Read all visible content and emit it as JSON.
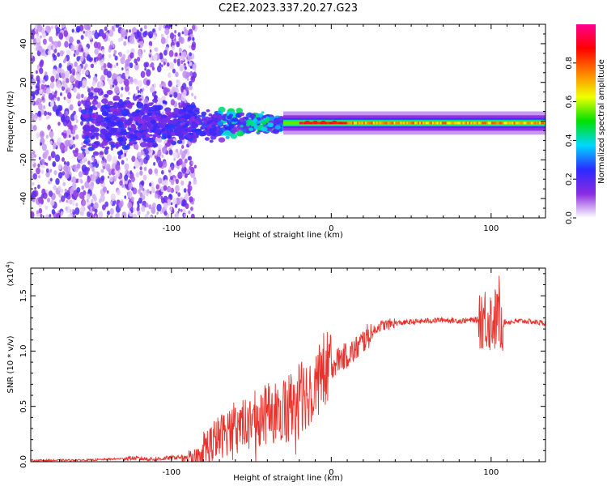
{
  "figure": {
    "title": "C2E2.2023.337.20.27.G23"
  },
  "chart_data": [
    {
      "type": "heatmap",
      "xlabel": "Height of straight line (km)",
      "ylabel": "Frequency (Hz)",
      "xlim": [
        -188,
        134
      ],
      "ylim": [
        -50,
        50
      ],
      "xticks": [
        -100,
        0,
        100
      ],
      "yticks": [
        -40,
        -20,
        0,
        20,
        40
      ],
      "colorbar": {
        "label": "Normalized spectral amplitude",
        "range": [
          0,
          1
        ],
        "ticks": [
          0.0,
          0.2,
          0.4,
          0.6,
          0.8
        ],
        "tick_labels": [
          "0.0",
          "0.2",
          "0.4",
          "0.6",
          "0.8"
        ],
        "colormap": [
          "#ffffff",
          "#8a2be2",
          "#2a2aff",
          "#00d8ff",
          "#00e000",
          "#f0ff00",
          "#ff8000",
          "#ff0000",
          "#ff0090"
        ]
      },
      "features": {
        "carrier_frequency_hz": -1,
        "noisy_region_x": [
          -188,
          -90
        ],
        "strong_carrier_from_x": -20
      }
    },
    {
      "type": "line",
      "xlabel": "Height of straight line (km)",
      "ylabel": "SNR (10 * v/v)",
      "y_multiplier": "(x10",
      "y_multiplier_exp": "4",
      "xlim": [
        -188,
        134
      ],
      "ylim": [
        0,
        1.75
      ],
      "xticks": [
        -100,
        0,
        100
      ],
      "yticks": [
        0.0,
        0.5,
        1.0,
        1.5
      ],
      "ytick_labels": [
        "0.0",
        "0.5",
        "1.0",
        "1.5"
      ],
      "color": "#e8332d",
      "series": [
        {
          "x": [
            -188,
            -150,
            -125,
            -110,
            -95,
            -85,
            -80,
            -70,
            -60,
            -50,
            -40,
            -30,
            -20,
            -15,
            -10,
            -5,
            0,
            5,
            10,
            15,
            20,
            25,
            30,
            40,
            50,
            60,
            70,
            80,
            90,
            95,
            100,
            105,
            110,
            120,
            134
          ],
          "values": [
            0.01,
            0.015,
            0.03,
            0.02,
            0.04,
            0.05,
            0.1,
            0.2,
            0.3,
            0.35,
            0.4,
            0.45,
            0.55,
            0.6,
            0.7,
            0.78,
            0.85,
            0.92,
            0.95,
            1.0,
            1.08,
            1.15,
            1.22,
            1.25,
            1.26,
            1.27,
            1.28,
            1.27,
            1.28,
            1.28,
            1.25,
            1.26,
            1.26,
            1.27,
            1.25
          ]
        }
      ]
    }
  ]
}
